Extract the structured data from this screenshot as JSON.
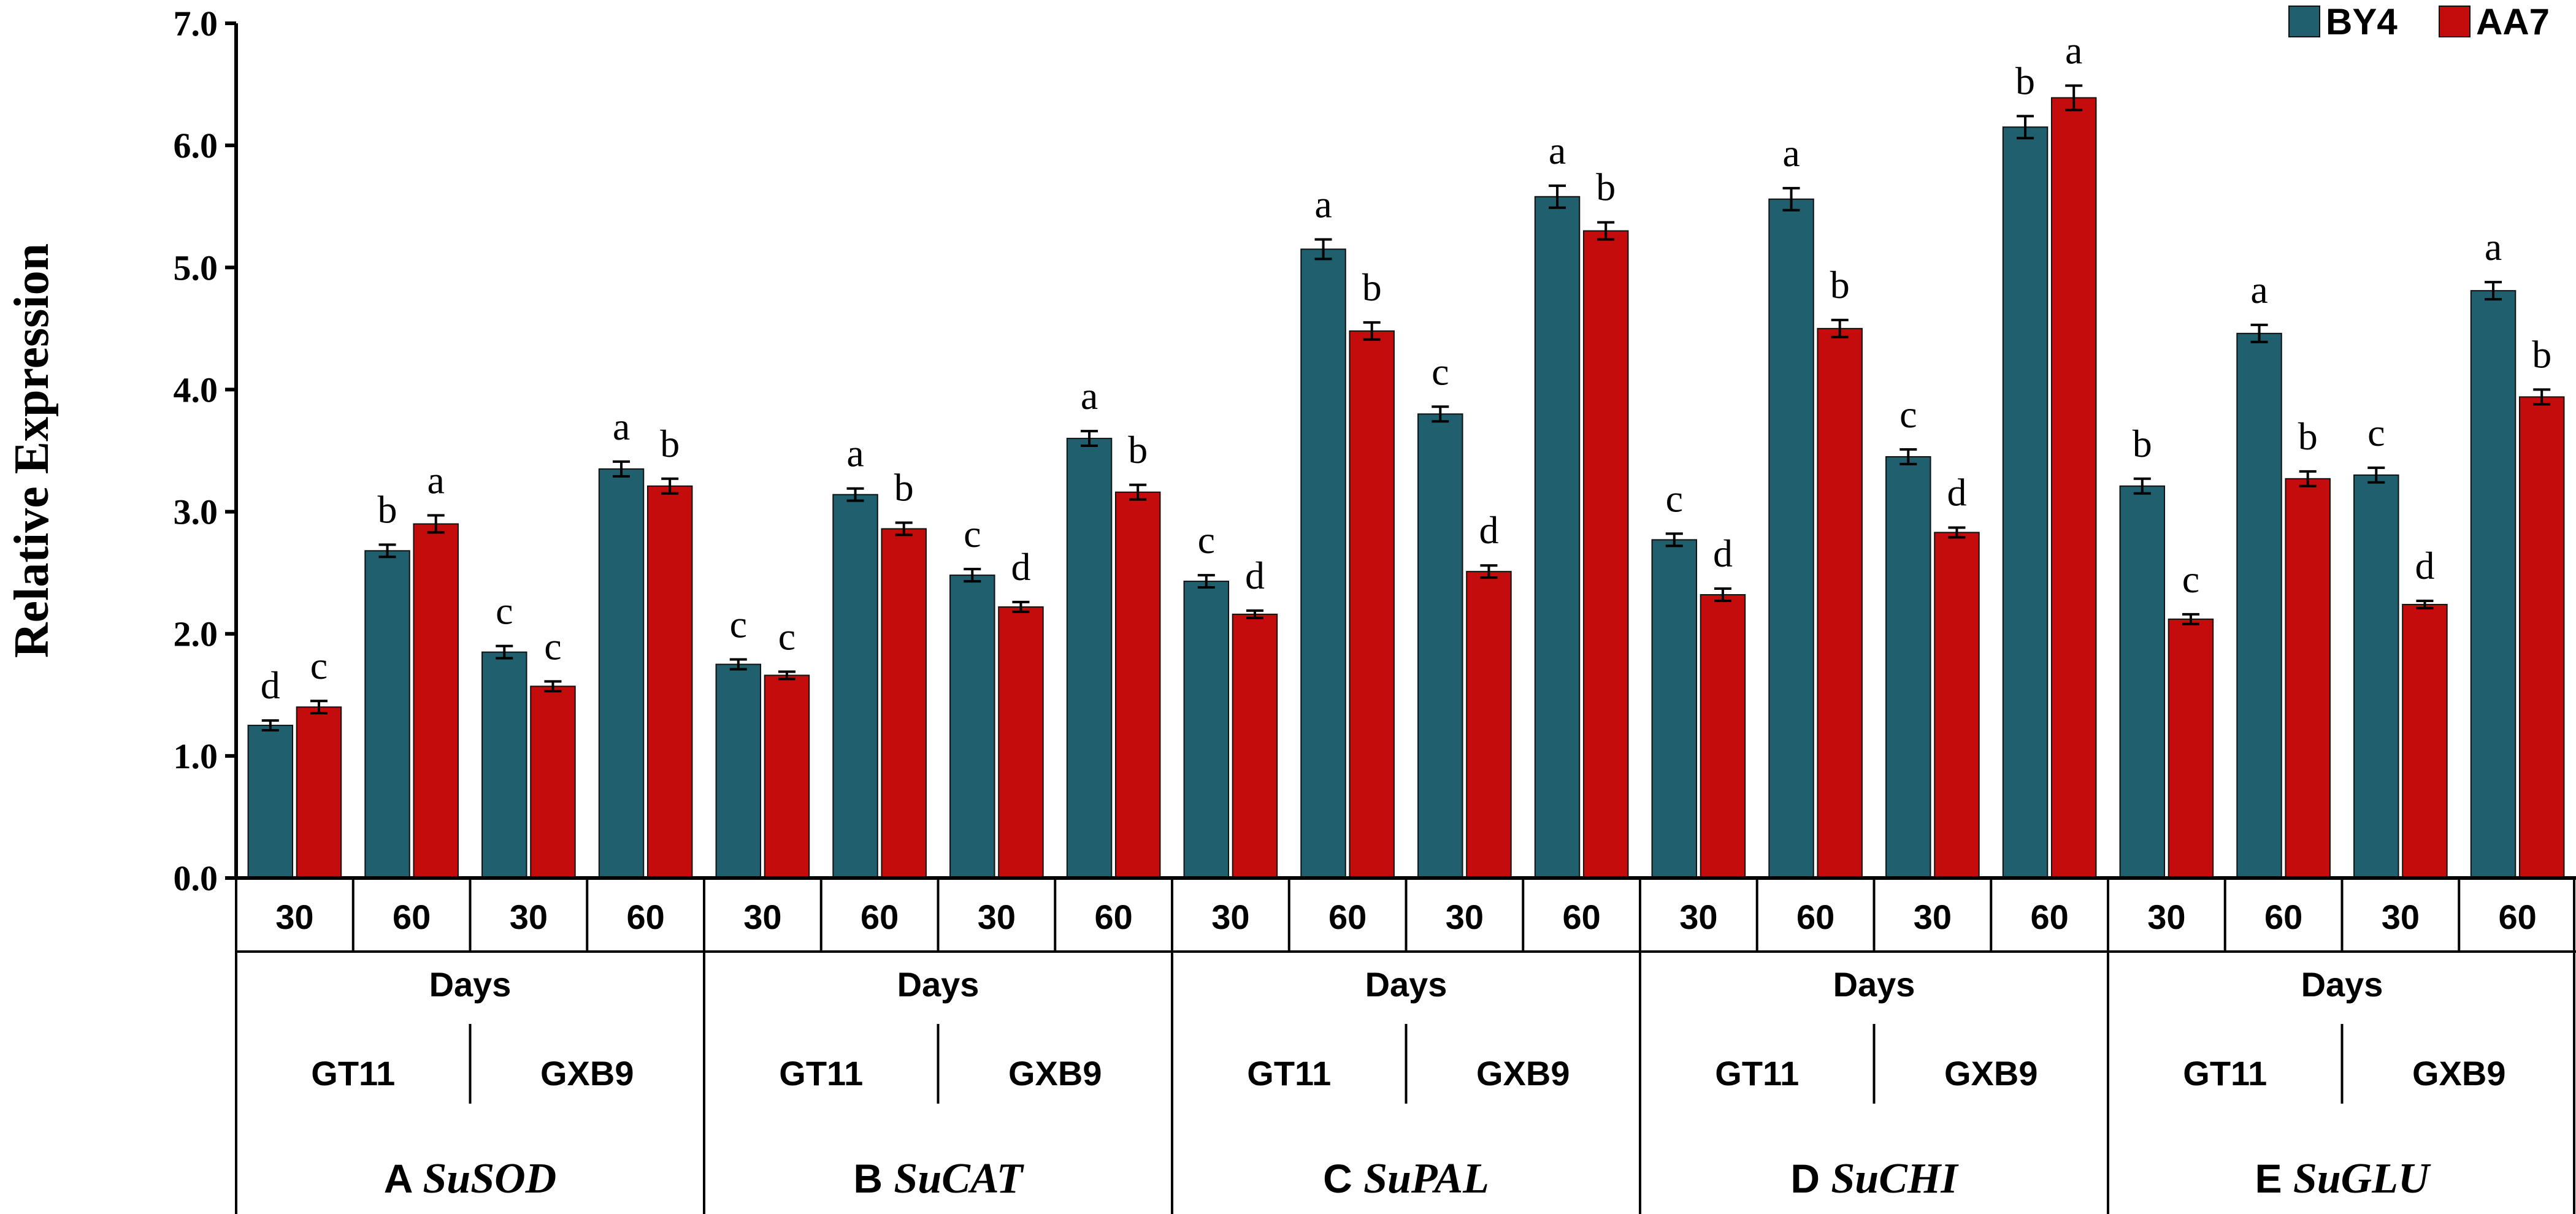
{
  "chart_data": {
    "type": "bar",
    "title": "",
    "ylabel": "Relative Expression",
    "xlabel": "Days",
    "ylim": [
      0,
      7
    ],
    "yticks": [
      "0.0",
      "1.0",
      "2.0",
      "3.0",
      "4.0",
      "5.0",
      "6.0",
      "7.0"
    ],
    "colors": {
      "BY4": "#1f5f6e",
      "AA7": "#c40c0c"
    },
    "legend": {
      "position": "top-right",
      "entries": [
        "BY4",
        "AA7"
      ]
    },
    "panels": [
      {
        "letter": "A",
        "gene": "SuSOD",
        "days_label": "Days",
        "varieties": [
          {
            "name": "GT11",
            "groups": [
              {
                "day": "30",
                "BY4": 1.25,
                "AA7": 1.4,
                "BY4_err": 0.04,
                "AA7_err": 0.05,
                "BY4_sig": "d",
                "AA7_sig": "c"
              },
              {
                "day": "60",
                "BY4": 2.68,
                "AA7": 2.9,
                "BY4_err": 0.05,
                "AA7_err": 0.07,
                "BY4_sig": "b",
                "AA7_sig": "a"
              }
            ]
          },
          {
            "name": "GXB9",
            "groups": [
              {
                "day": "30",
                "BY4": 1.85,
                "AA7": 1.57,
                "BY4_err": 0.05,
                "AA7_err": 0.04,
                "BY4_sig": "c",
                "AA7_sig": "c"
              },
              {
                "day": "60",
                "BY4": 3.35,
                "AA7": 3.21,
                "BY4_err": 0.06,
                "AA7_err": 0.06,
                "BY4_sig": "a",
                "AA7_sig": "b"
              }
            ]
          }
        ]
      },
      {
        "letter": "B",
        "gene": "SuCAT",
        "days_label": "Days",
        "varieties": [
          {
            "name": "GT11",
            "groups": [
              {
                "day": "30",
                "BY4": 1.75,
                "AA7": 1.66,
                "BY4_err": 0.04,
                "AA7_err": 0.03,
                "BY4_sig": "c",
                "AA7_sig": "c"
              },
              {
                "day": "60",
                "BY4": 3.14,
                "AA7": 2.86,
                "BY4_err": 0.05,
                "AA7_err": 0.05,
                "BY4_sig": "a",
                "AA7_sig": "b"
              }
            ]
          },
          {
            "name": "GXB9",
            "groups": [
              {
                "day": "30",
                "BY4": 2.48,
                "AA7": 2.22,
                "BY4_err": 0.05,
                "AA7_err": 0.04,
                "BY4_sig": "c",
                "AA7_sig": "d"
              },
              {
                "day": "60",
                "BY4": 3.6,
                "AA7": 3.16,
                "BY4_err": 0.06,
                "AA7_err": 0.06,
                "BY4_sig": "a",
                "AA7_sig": "b"
              }
            ]
          }
        ]
      },
      {
        "letter": "C",
        "gene": "SuPAL",
        "days_label": "Days",
        "varieties": [
          {
            "name": "GT11",
            "groups": [
              {
                "day": "30",
                "BY4": 2.43,
                "AA7": 2.16,
                "BY4_err": 0.05,
                "AA7_err": 0.03,
                "BY4_sig": "c",
                "AA7_sig": "d"
              },
              {
                "day": "60",
                "BY4": 5.15,
                "AA7": 4.48,
                "BY4_err": 0.08,
                "AA7_err": 0.07,
                "BY4_sig": "a",
                "AA7_sig": "b"
              }
            ]
          },
          {
            "name": "GXB9",
            "groups": [
              {
                "day": "30",
                "BY4": 3.8,
                "AA7": 2.51,
                "BY4_err": 0.06,
                "AA7_err": 0.05,
                "BY4_sig": "c",
                "AA7_sig": "d"
              },
              {
                "day": "60",
                "BY4": 5.58,
                "AA7": 5.3,
                "BY4_err": 0.09,
                "AA7_err": 0.07,
                "BY4_sig": "a",
                "AA7_sig": "b"
              }
            ]
          }
        ]
      },
      {
        "letter": "D",
        "gene": "SuCHI",
        "days_label": "Days",
        "varieties": [
          {
            "name": "GT11",
            "groups": [
              {
                "day": "30",
                "BY4": 2.77,
                "AA7": 2.32,
                "BY4_err": 0.05,
                "AA7_err": 0.05,
                "BY4_sig": "c",
                "AA7_sig": "d"
              },
              {
                "day": "60",
                "BY4": 5.56,
                "AA7": 4.5,
                "BY4_err": 0.09,
                "AA7_err": 0.07,
                "BY4_sig": "a",
                "AA7_sig": "b"
              }
            ]
          },
          {
            "name": "GXB9",
            "groups": [
              {
                "day": "30",
                "BY4": 3.45,
                "AA7": 2.83,
                "BY4_err": 0.06,
                "AA7_err": 0.04,
                "BY4_sig": "c",
                "AA7_sig": "d"
              },
              {
                "day": "60",
                "BY4": 6.15,
                "AA7": 6.39,
                "BY4_err": 0.09,
                "AA7_err": 0.1,
                "BY4_sig": "b",
                "AA7_sig": "a"
              }
            ]
          }
        ]
      },
      {
        "letter": "E",
        "gene": "SuGLU",
        "days_label": "Days",
        "varieties": [
          {
            "name": "GT11",
            "groups": [
              {
                "day": "30",
                "BY4": 3.21,
                "AA7": 2.12,
                "BY4_err": 0.06,
                "AA7_err": 0.04,
                "BY4_sig": "b",
                "AA7_sig": "c"
              },
              {
                "day": "60",
                "BY4": 4.46,
                "AA7": 3.27,
                "BY4_err": 0.07,
                "AA7_err": 0.06,
                "BY4_sig": "a",
                "AA7_sig": "b"
              }
            ]
          },
          {
            "name": "GXB9",
            "groups": [
              {
                "day": "30",
                "BY4": 3.3,
                "AA7": 2.24,
                "BY4_err": 0.06,
                "AA7_err": 0.03,
                "BY4_sig": "c",
                "AA7_sig": "d"
              },
              {
                "day": "60",
                "BY4": 4.81,
                "AA7": 3.94,
                "BY4_err": 0.07,
                "AA7_err": 0.06,
                "BY4_sig": "a",
                "AA7_sig": "b"
              }
            ]
          }
        ]
      }
    ]
  }
}
